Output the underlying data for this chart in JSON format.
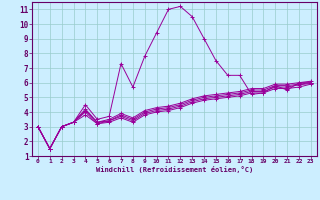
{
  "bg_color": "#cceeff",
  "line_color": "#990099",
  "grid_color": "#99cccc",
  "xlabel": "Windchill (Refroidissement éolien,°C)",
  "xlabel_color": "#660066",
  "tick_color": "#660066",
  "spine_color": "#660066",
  "xlim": [
    -0.5,
    23.5
  ],
  "ylim": [
    1,
    11.5
  ],
  "yticks": [
    1,
    2,
    3,
    4,
    5,
    6,
    7,
    8,
    9,
    10,
    11
  ],
  "xticks": [
    0,
    1,
    2,
    3,
    4,
    5,
    6,
    7,
    8,
    9,
    10,
    11,
    12,
    13,
    14,
    15,
    16,
    17,
    18,
    19,
    20,
    21,
    22,
    23
  ],
  "series": [
    {
      "x": [
        0,
        1,
        2,
        3,
        4,
        5,
        6,
        7,
        8,
        9,
        10,
        11,
        12,
        13,
        14,
        15,
        16,
        17,
        18,
        19,
        20,
        21,
        22,
        23
      ],
      "y": [
        3.0,
        1.5,
        3.0,
        3.3,
        4.5,
        3.5,
        3.7,
        7.3,
        5.7,
        7.8,
        9.4,
        11.0,
        11.2,
        10.5,
        9.0,
        7.5,
        6.5,
        6.5,
        5.2,
        5.3,
        5.8,
        5.5,
        6.0,
        6.0
      ]
    },
    {
      "x": [
        0,
        1,
        2,
        3,
        4,
        5,
        6,
        7,
        8,
        9,
        10,
        11,
        12,
        13,
        14,
        15,
        16,
        17,
        18,
        19,
        20,
        21,
        22,
        23
      ],
      "y": [
        3.0,
        1.5,
        3.0,
        3.3,
        4.2,
        3.3,
        3.5,
        3.9,
        3.6,
        4.1,
        4.3,
        4.4,
        4.6,
        4.9,
        5.1,
        5.2,
        5.3,
        5.4,
        5.6,
        5.6,
        5.9,
        5.9,
        6.0,
        6.1
      ]
    },
    {
      "x": [
        0,
        1,
        2,
        3,
        4,
        5,
        6,
        7,
        8,
        9,
        10,
        11,
        12,
        13,
        14,
        15,
        16,
        17,
        18,
        19,
        20,
        21,
        22,
        23
      ],
      "y": [
        3.0,
        1.5,
        3.0,
        3.3,
        4.1,
        3.3,
        3.4,
        3.8,
        3.5,
        4.0,
        4.2,
        4.3,
        4.5,
        4.8,
        5.0,
        5.1,
        5.2,
        5.3,
        5.5,
        5.5,
        5.8,
        5.8,
        5.9,
        6.0
      ]
    },
    {
      "x": [
        0,
        1,
        2,
        3,
        4,
        5,
        6,
        7,
        8,
        9,
        10,
        11,
        12,
        13,
        14,
        15,
        16,
        17,
        18,
        19,
        20,
        21,
        22,
        23
      ],
      "y": [
        3.0,
        1.5,
        3.0,
        3.3,
        4.0,
        3.2,
        3.4,
        3.7,
        3.4,
        3.9,
        4.1,
        4.2,
        4.4,
        4.7,
        4.9,
        5.0,
        5.1,
        5.2,
        5.4,
        5.4,
        5.7,
        5.7,
        5.85,
        5.95
      ]
    },
    {
      "x": [
        0,
        1,
        2,
        3,
        4,
        5,
        6,
        7,
        8,
        9,
        10,
        11,
        12,
        13,
        14,
        15,
        16,
        17,
        18,
        19,
        20,
        21,
        22,
        23
      ],
      "y": [
        3.0,
        1.5,
        3.0,
        3.3,
        3.8,
        3.2,
        3.3,
        3.6,
        3.3,
        3.8,
        4.0,
        4.1,
        4.3,
        4.6,
        4.8,
        4.9,
        5.0,
        5.1,
        5.3,
        5.3,
        5.6,
        5.6,
        5.7,
        5.9
      ]
    }
  ]
}
